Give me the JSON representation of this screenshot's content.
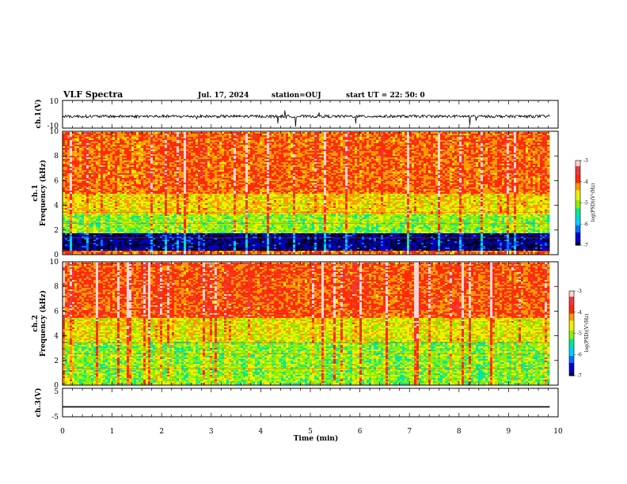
{
  "header": {
    "title": "VLF Spectra",
    "date": "Jul. 17, 2024",
    "station": "station=OUJ",
    "start": "start UT =  22: 50: 0"
  },
  "colors": {
    "spectrogram_scale": [
      "#00002a",
      "#0000c8",
      "#0070ff",
      "#00d0ff",
      "#00e89a",
      "#8cf000",
      "#f0f000",
      "#ff9900",
      "#ff2a00",
      "#ee3a3a",
      "#ffd6d6"
    ],
    "trace": "#000000"
  },
  "chart_data": [
    {
      "id": "ch1-waveform",
      "type": "line",
      "ylabel": "ch.1(V)",
      "ylim": [
        -10,
        10
      ],
      "yticks": [
        "10",
        "-10"
      ],
      "xlim": [
        0,
        10
      ],
      "xlabel": "",
      "description_values": {
        "baseline_v": -1.5,
        "noise_v": 1.0,
        "max_spike_v": 6,
        "min_spike_v": -8
      },
      "grid": false
    },
    {
      "id": "ch1-spectrogram",
      "type": "heatmap",
      "ylabel": "ch.1\nFrequency (kHz)",
      "ylim": [
        0,
        10
      ],
      "yticks": [
        "0",
        "2",
        "4",
        "6",
        "8",
        "10"
      ],
      "xlim": [
        0,
        10
      ],
      "data_end_min": 9.83,
      "colorbar": {
        "label": "log(PSD)(V²/Hz)",
        "range": [
          -7,
          -3
        ],
        "ticks": [
          "-3",
          "-4",
          "-5",
          "-6",
          "-7"
        ]
      },
      "bands_khz": [
        {
          "from": 0.2,
          "to": 1.7,
          "log_psd": -6.8
        },
        {
          "from": 1.7,
          "to": 3.3,
          "log_psd": -5.0
        },
        {
          "from": 3.3,
          "to": 5.0,
          "log_psd": -4.5
        },
        {
          "from": 5.0,
          "to": 10.0,
          "log_psd": -4.0
        }
      ]
    },
    {
      "id": "ch2-spectrogram",
      "type": "heatmap",
      "ylabel": "ch.2\nFrequency (kHz)",
      "ylim": [
        0,
        10
      ],
      "yticks": [
        "0",
        "2",
        "4",
        "6",
        "8",
        "10"
      ],
      "xlim": [
        0,
        10
      ],
      "data_end_min": 9.83,
      "colorbar": {
        "label": "log(PSD)(V²/Hz)",
        "range": [
          -7,
          -3
        ],
        "ticks": [
          "-3",
          "-4",
          "-5",
          "-6",
          "-7"
        ]
      },
      "bands_khz": [
        {
          "from": 0.0,
          "to": 3.5,
          "log_psd": -5.0
        },
        {
          "from": 3.5,
          "to": 5.5,
          "log_psd": -4.6
        },
        {
          "from": 5.5,
          "to": 10.0,
          "log_psd": -3.9
        }
      ]
    },
    {
      "id": "ch3-waveform",
      "type": "line",
      "ylabel": "ch.3(V)",
      "ylim": [
        -5,
        5
      ],
      "yticks": [
        "5",
        "-5"
      ],
      "xlim": [
        0,
        10
      ],
      "series": [
        {
          "x": [
            0,
            9.83
          ],
          "y": [
            -1.5,
            -1.5
          ]
        }
      ],
      "xlabel": "Time (min)",
      "xticks": [
        "0",
        "1",
        "2",
        "3",
        "4",
        "5",
        "6",
        "7",
        "8",
        "9",
        "10"
      ],
      "grid": false
    }
  ]
}
